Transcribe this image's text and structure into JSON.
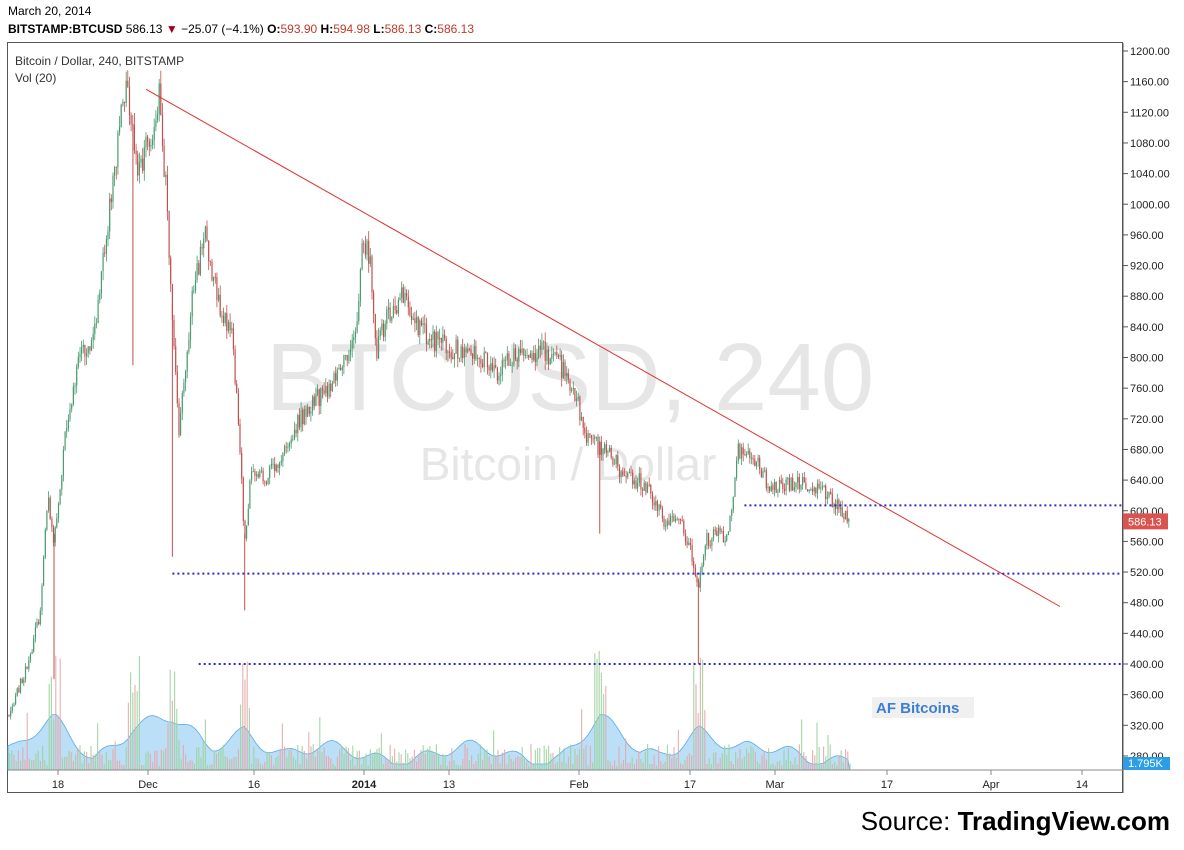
{
  "header": {
    "date": "March 20, 2014",
    "symbol": "BITSTAMP:BTCUSD",
    "last": "586.13",
    "change": "−25.07 (−4.1%)",
    "open_label": "O:",
    "open": "593.90",
    "high_label": "H:",
    "high": "594.98",
    "low_label": "L:",
    "low": "586.13",
    "close_label": "C:",
    "close": "586.13"
  },
  "chart_title": "Bitcoin / Dollar, 240, BITSTAMP",
  "volume_label": "Vol (20)",
  "watermark": {
    "symbol": "BTCUSD, 240",
    "name": "Bitcoin / Dollar"
  },
  "annotation": "AF Bitcoins",
  "volume_badge": "1.795K",
  "price_badge": "586.13",
  "source": {
    "prefix": "Source: ",
    "name": "TradingView.com"
  },
  "colors": {
    "up": "#4a9b6f",
    "down": "#c0504d",
    "trendline": "#e03030",
    "support": "#2a2ad0",
    "volume_area": "#82c4ef"
  },
  "chart_data": {
    "type": "candlestick",
    "y_axis": {
      "min": 260,
      "max": 1200,
      "step": 40,
      "tick_labels": [
        "1200.00",
        "1160.00",
        "1120.00",
        "1080.00",
        "1040.00",
        "1000.00",
        "960.00",
        "920.00",
        "880.00",
        "840.00",
        "800.00",
        "760.00",
        "720.00",
        "680.00",
        "640.00",
        "600.00",
        "560.00",
        "520.00",
        "480.00",
        "440.00",
        "400.00",
        "360.00",
        "320.00",
        "280.00"
      ]
    },
    "x_axis": {
      "tick_labels": [
        "18",
        "Dec",
        "16",
        "2014",
        "13",
        "Feb",
        "17",
        "Mar",
        "17",
        "Apr",
        "14"
      ],
      "bold_labels": [
        "2014"
      ]
    },
    "price_path": [
      [
        "2013-11-12",
        330
      ],
      [
        "2013-11-15",
        400
      ],
      [
        "2013-11-17",
        470
      ],
      [
        "2013-11-18",
        620
      ],
      [
        "2013-11-19",
        560
      ],
      [
        "2013-11-21",
        720
      ],
      [
        "2013-11-23",
        800
      ],
      [
        "2013-11-25",
        830
      ],
      [
        "2013-11-27",
        960
      ],
      [
        "2013-11-29",
        1100
      ],
      [
        "2013-11-30",
        1150
      ],
      [
        "2013-12-02",
        1040
      ],
      [
        "2013-12-04",
        1100
      ],
      [
        "2013-12-05",
        1140
      ],
      [
        "2013-12-06",
        1020
      ],
      [
        "2013-12-07",
        860
      ],
      [
        "2013-12-08",
        700
      ],
      [
        "2013-12-10",
        880
      ],
      [
        "2013-12-12",
        960
      ],
      [
        "2013-12-14",
        870
      ],
      [
        "2013-12-16",
        830
      ],
      [
        "2013-12-17",
        720
      ],
      [
        "2013-12-18",
        560
      ],
      [
        "2013-12-19",
        650
      ],
      [
        "2013-12-21",
        640
      ],
      [
        "2013-12-23",
        660
      ],
      [
        "2013-12-25",
        700
      ],
      [
        "2013-12-28",
        740
      ],
      [
        "2013-12-31",
        760
      ],
      [
        "2014-01-02",
        790
      ],
      [
        "2014-01-04",
        850
      ],
      [
        "2014-01-05",
        960
      ],
      [
        "2014-01-06",
        930
      ],
      [
        "2014-01-07",
        810
      ],
      [
        "2014-01-09",
        860
      ],
      [
        "2014-01-11",
        880
      ],
      [
        "2014-01-13",
        840
      ],
      [
        "2014-01-16",
        820
      ],
      [
        "2014-01-19",
        810
      ],
      [
        "2014-01-22",
        810
      ],
      [
        "2014-01-25",
        780
      ],
      [
        "2014-01-28",
        800
      ],
      [
        "2014-02-01",
        810
      ],
      [
        "2014-02-04",
        790
      ],
      [
        "2014-02-06",
        760
      ],
      [
        "2014-02-08",
        700
      ],
      [
        "2014-02-10",
        680
      ],
      [
        "2014-02-12",
        670
      ],
      [
        "2014-02-14",
        640
      ],
      [
        "2014-02-16",
        640
      ],
      [
        "2014-02-18",
        620
      ],
      [
        "2014-02-20",
        580
      ],
      [
        "2014-02-22",
        600
      ],
      [
        "2014-02-24",
        540
      ],
      [
        "2014-02-25",
        500
      ],
      [
        "2014-02-26",
        560
      ],
      [
        "2014-02-28",
        570
      ],
      [
        "2014-03-01",
        560
      ],
      [
        "2014-03-02",
        600
      ],
      [
        "2014-03-03",
        680
      ],
      [
        "2014-03-04",
        670
      ],
      [
        "2014-03-06",
        660
      ],
      [
        "2014-03-08",
        630
      ],
      [
        "2014-03-10",
        630
      ],
      [
        "2014-03-12",
        640
      ],
      [
        "2014-03-14",
        630
      ],
      [
        "2014-03-16",
        625
      ],
      [
        "2014-03-18",
        610
      ],
      [
        "2014-03-19",
        600
      ],
      [
        "2014-03-20",
        586
      ]
    ],
    "spikes": [
      {
        "date": "2013-12-18",
        "low": 470
      },
      {
        "date": "2013-12-07",
        "low": 540
      },
      {
        "date": "2014-02-25",
        "low": 400
      },
      {
        "date": "2013-11-19",
        "low": 380
      },
      {
        "date": "2013-12-01",
        "low": 790
      },
      {
        "date": "2014-02-10",
        "low": 570
      }
    ],
    "trendline": {
      "from": [
        "2013-12-03",
        1150
      ],
      "to": [
        "2014-04-21",
        475
      ]
    },
    "support_levels": [
      {
        "price": 607,
        "from": "2014-03-04"
      },
      {
        "price": 518,
        "from": "2013-12-07"
      },
      {
        "price": 400,
        "from": "2013-12-11"
      }
    ],
    "last_price": 586.13
  }
}
